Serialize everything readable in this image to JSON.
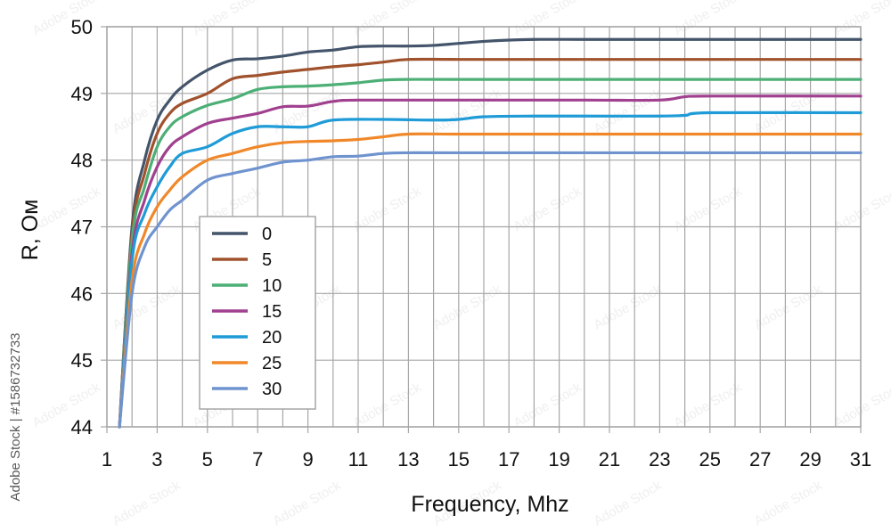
{
  "chart_data": {
    "type": "line",
    "xlabel": "Frequency, Mhz",
    "ylabel": "R, Ом",
    "xlim": [
      1,
      31
    ],
    "ylim": [
      44,
      50
    ],
    "x_ticks": [
      "1",
      "3",
      "5",
      "7",
      "9",
      "11",
      "13",
      "15",
      "17",
      "19",
      "21",
      "23",
      "25",
      "27",
      "29",
      "31"
    ],
    "y_ticks": [
      "44",
      "45",
      "46",
      "47",
      "48",
      "49",
      "50"
    ],
    "grid": true,
    "legend_position": "left-middle",
    "series": [
      {
        "name": "0",
        "color": "#44546a",
        "points": [
          [
            1.5,
            44.0
          ],
          [
            2.0,
            47.0
          ],
          [
            2.5,
            48.0
          ],
          [
            3.0,
            48.6
          ],
          [
            3.5,
            48.9
          ],
          [
            4.0,
            49.1
          ],
          [
            5.0,
            49.35
          ],
          [
            6.0,
            49.5
          ],
          [
            7.0,
            49.52
          ],
          [
            8.0,
            49.56
          ],
          [
            9.0,
            49.62
          ],
          [
            10.0,
            49.65
          ],
          [
            11.0,
            49.7
          ],
          [
            12.0,
            49.71
          ],
          [
            13.0,
            49.71
          ],
          [
            14.0,
            49.72
          ],
          [
            15.0,
            49.75
          ],
          [
            16.0,
            49.78
          ],
          [
            17.0,
            49.8
          ],
          [
            18.0,
            49.81
          ],
          [
            20.0,
            49.81
          ],
          [
            25.0,
            49.81
          ],
          [
            31.0,
            49.81
          ]
        ]
      },
      {
        "name": "5",
        "color": "#a0522d",
        "points": [
          [
            1.5,
            44.0
          ],
          [
            2.0,
            46.9
          ],
          [
            2.5,
            47.8
          ],
          [
            3.0,
            48.4
          ],
          [
            3.5,
            48.7
          ],
          [
            4.0,
            48.85
          ],
          [
            5.0,
            49.0
          ],
          [
            6.0,
            49.22
          ],
          [
            7.0,
            49.27
          ],
          [
            8.0,
            49.32
          ],
          [
            9.0,
            49.36
          ],
          [
            10.0,
            49.4
          ],
          [
            11.0,
            49.43
          ],
          [
            12.0,
            49.47
          ],
          [
            13.0,
            49.51
          ],
          [
            15.0,
            49.51
          ],
          [
            20.0,
            49.51
          ],
          [
            25.0,
            49.51
          ],
          [
            31.0,
            49.51
          ]
        ]
      },
      {
        "name": "10",
        "color": "#4caf76",
        "points": [
          [
            1.5,
            44.0
          ],
          [
            2.0,
            46.8
          ],
          [
            2.5,
            47.6
          ],
          [
            3.0,
            48.2
          ],
          [
            3.5,
            48.5
          ],
          [
            4.0,
            48.65
          ],
          [
            5.0,
            48.82
          ],
          [
            6.0,
            48.92
          ],
          [
            7.0,
            49.06
          ],
          [
            8.0,
            49.1
          ],
          [
            9.0,
            49.11
          ],
          [
            10.0,
            49.13
          ],
          [
            11.0,
            49.16
          ],
          [
            12.0,
            49.2
          ],
          [
            13.0,
            49.21
          ],
          [
            15.0,
            49.21
          ],
          [
            20.0,
            49.21
          ],
          [
            25.0,
            49.21
          ],
          [
            31.0,
            49.21
          ]
        ]
      },
      {
        "name": "15",
        "color": "#a0408f",
        "points": [
          [
            1.5,
            44.0
          ],
          [
            2.0,
            46.6
          ],
          [
            2.5,
            47.4
          ],
          [
            3.0,
            47.9
          ],
          [
            3.5,
            48.2
          ],
          [
            4.0,
            48.35
          ],
          [
            5.0,
            48.55
          ],
          [
            6.0,
            48.63
          ],
          [
            7.0,
            48.7
          ],
          [
            8.0,
            48.8
          ],
          [
            9.0,
            48.81
          ],
          [
            10.0,
            48.88
          ],
          [
            11.0,
            48.9
          ],
          [
            15.0,
            48.9
          ],
          [
            20.0,
            48.9
          ],
          [
            23.0,
            48.9
          ],
          [
            24.0,
            48.95
          ],
          [
            25.0,
            48.96
          ],
          [
            31.0,
            48.96
          ]
        ]
      },
      {
        "name": "20",
        "color": "#1f9bd7",
        "points": [
          [
            1.5,
            44.0
          ],
          [
            2.0,
            46.5
          ],
          [
            2.5,
            47.2
          ],
          [
            3.0,
            47.6
          ],
          [
            3.5,
            47.9
          ],
          [
            4.0,
            48.1
          ],
          [
            5.0,
            48.2
          ],
          [
            6.0,
            48.4
          ],
          [
            7.0,
            48.5
          ],
          [
            8.0,
            48.5
          ],
          [
            9.0,
            48.5
          ],
          [
            10.0,
            48.6
          ],
          [
            12.0,
            48.61
          ],
          [
            14.0,
            48.6
          ],
          [
            15.0,
            48.61
          ],
          [
            16.0,
            48.65
          ],
          [
            18.0,
            48.66
          ],
          [
            20.0,
            48.66
          ],
          [
            23.0,
            48.66
          ],
          [
            24.0,
            48.67
          ],
          [
            25.0,
            48.71
          ],
          [
            31.0,
            48.71
          ]
        ]
      },
      {
        "name": "25",
        "color": "#f0882a",
        "points": [
          [
            1.5,
            44.0
          ],
          [
            2.0,
            46.2
          ],
          [
            2.5,
            46.9
          ],
          [
            3.0,
            47.3
          ],
          [
            3.5,
            47.55
          ],
          [
            4.0,
            47.75
          ],
          [
            5.0,
            48.0
          ],
          [
            6.0,
            48.1
          ],
          [
            7.0,
            48.2
          ],
          [
            8.0,
            48.26
          ],
          [
            9.0,
            48.28
          ],
          [
            10.0,
            48.29
          ],
          [
            11.0,
            48.31
          ],
          [
            12.0,
            48.35
          ],
          [
            13.0,
            48.39
          ],
          [
            15.0,
            48.39
          ],
          [
            20.0,
            48.39
          ],
          [
            25.0,
            48.39
          ],
          [
            31.0,
            48.39
          ]
        ]
      },
      {
        "name": "30",
        "color": "#6f93cf",
        "points": [
          [
            1.5,
            44.0
          ],
          [
            2.0,
            46.0
          ],
          [
            2.5,
            46.7
          ],
          [
            3.0,
            47.0
          ],
          [
            3.5,
            47.25
          ],
          [
            4.0,
            47.4
          ],
          [
            5.0,
            47.7
          ],
          [
            6.0,
            47.8
          ],
          [
            7.0,
            47.88
          ],
          [
            8.0,
            47.97
          ],
          [
            9.0,
            48.0
          ],
          [
            10.0,
            48.05
          ],
          [
            11.0,
            48.06
          ],
          [
            12.0,
            48.1
          ],
          [
            13.0,
            48.11
          ],
          [
            15.0,
            48.11
          ],
          [
            20.0,
            48.11
          ],
          [
            25.0,
            48.11
          ],
          [
            31.0,
            48.11
          ]
        ]
      }
    ]
  },
  "watermark": {
    "side_text": "Adobe Stock | #1586732733",
    "tile_text": "Adobe Stock"
  }
}
